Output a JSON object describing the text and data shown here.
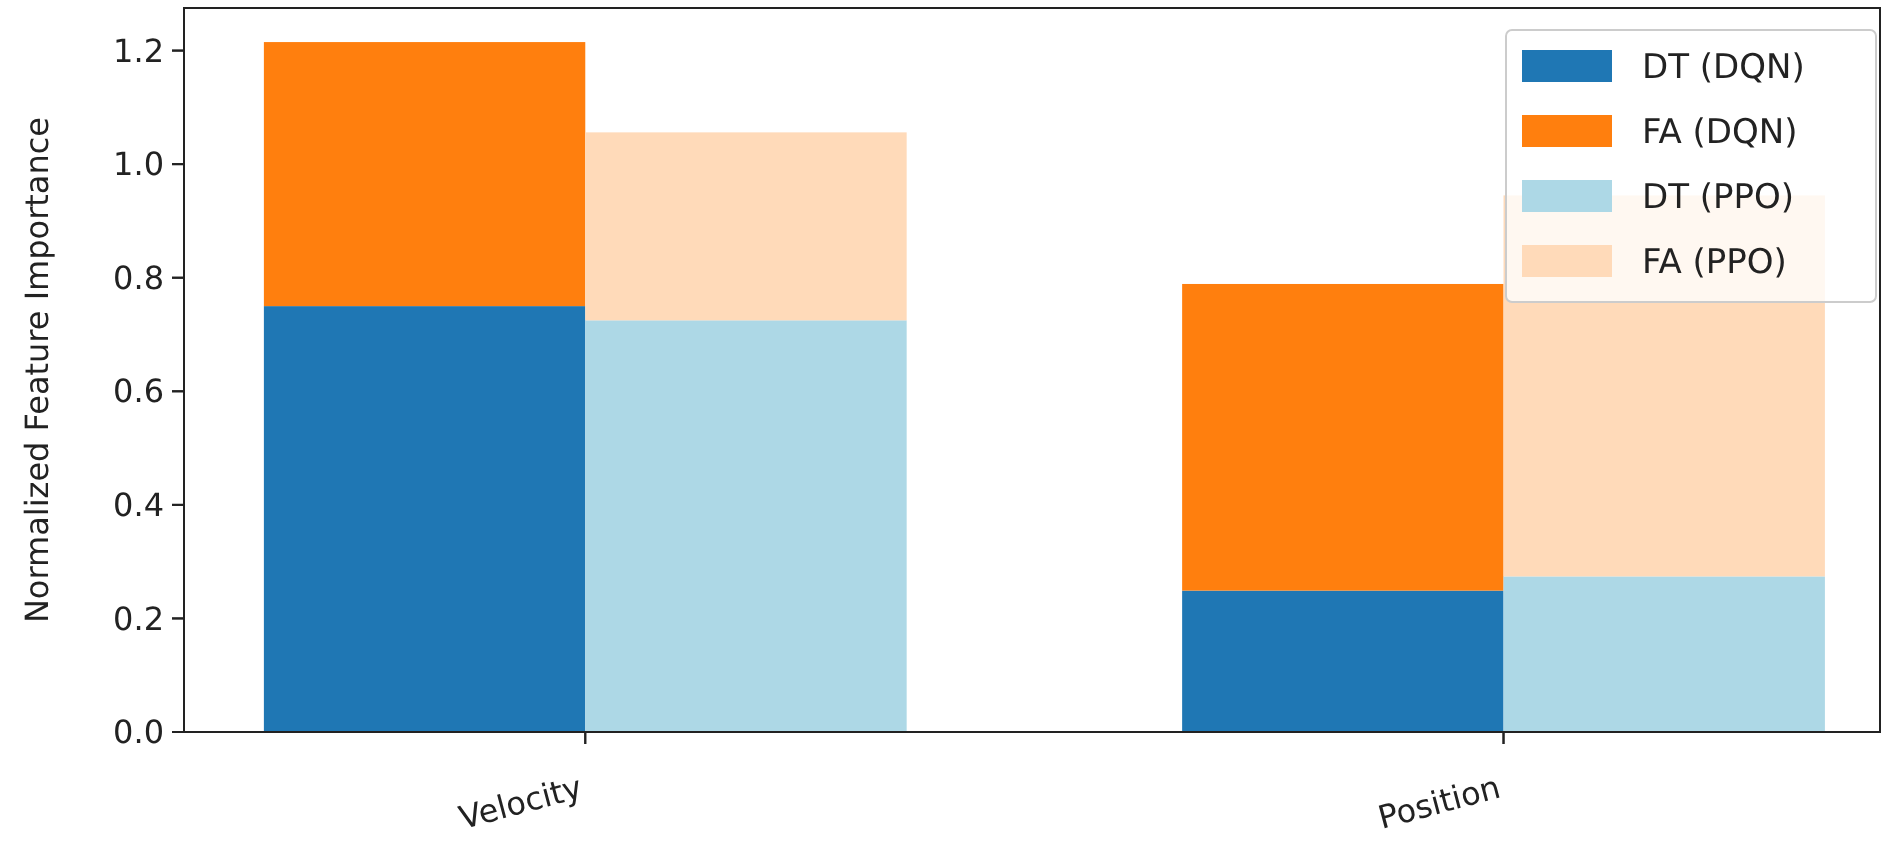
{
  "chart_data": [
    {
      "type": "bar",
      "stacked": true,
      "ylabel": "Normalized Feature Importance",
      "categories": [
        "Velocity",
        "Position"
      ],
      "series": [
        {
          "name": "DT (DQN)",
          "color": "#1f77b4",
          "values": [
            0.75,
            0.249
          ]
        },
        {
          "name": "FA (DQN)",
          "color": "#ff7f0e",
          "values": [
            0.465,
            0.54
          ]
        }
      ],
      "ylim": [
        0,
        1.275
      ],
      "yticks": [
        {
          "value": 0,
          "label": "0.0"
        },
        {
          "value": 0.2,
          "label": "0.2"
        },
        {
          "value": 0.4,
          "label": "0.4"
        },
        {
          "value": 0.6,
          "label": "0.6"
        },
        {
          "value": 0.8,
          "label": "0.8"
        },
        {
          "value": 1,
          "label": "1.0"
        },
        {
          "value": 1.2,
          "label": "1.2"
        }
      ],
      "legend": "top right"
    },
    {
      "type": "bar",
      "stacked": true,
      "categories": [
        null,
        null
      ],
      "series": [
        {
          "name": "DT (PPO)",
          "color": "#add8e6",
          "values": [
            0.725,
            0.274
          ]
        },
        {
          "name": "FA (PPO)",
          "color": "#ffdab9",
          "values": [
            0.331,
            0.671
          ]
        }
      ],
      "ylim": [
        0,
        1.275
      ],
      "yticks": [
        0,
        0.2,
        0.4,
        0.6,
        0.8,
        1,
        1.2
      ],
      "tick_labels": false,
      "legend": "top right"
    }
  ]
}
